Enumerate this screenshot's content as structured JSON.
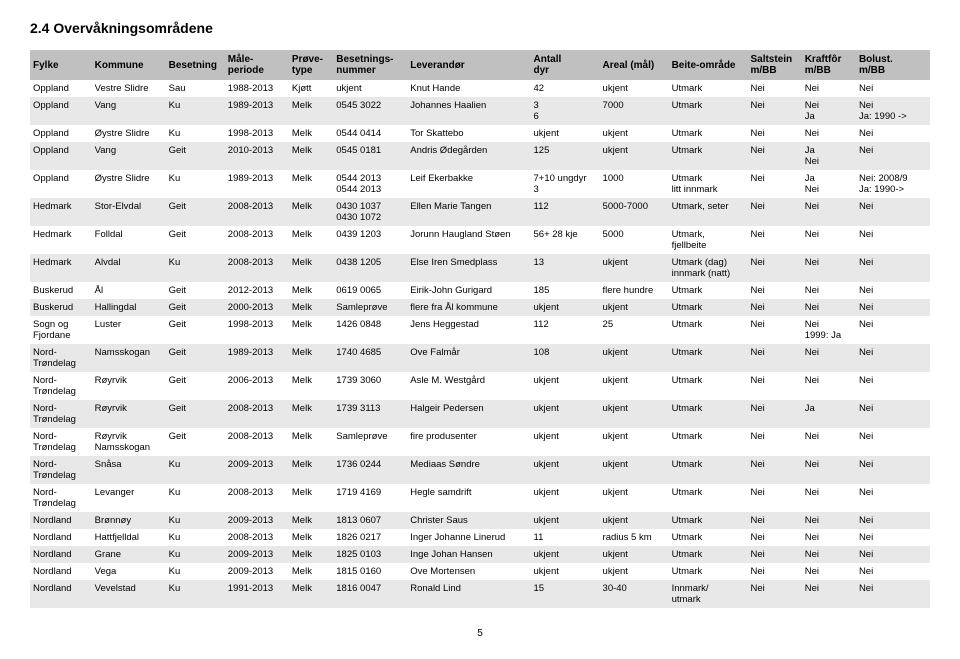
{
  "title": "2.4  Overvåkningsområdene",
  "pageNumber": "5",
  "columns": [
    "Fylke",
    "Kommune",
    "Besetning",
    "Måle-\nperiode",
    "Prøve-\ntype",
    "Besetnings-\nnummer",
    "Leverandør",
    "Antall\ndyr",
    "Areal (mål)",
    "Beite-område",
    "Saltstein\nm/BB",
    "Kraftfôr\nm/BB",
    "Bolust.\nm/BB"
  ],
  "rows": [
    [
      "Oppland",
      "Vestre Slidre",
      "Sau",
      "1988-2013",
      "Kjøtt",
      "ukjent",
      "Knut Hande",
      "42",
      "ukjent",
      "Utmark",
      "Nei",
      "Nei",
      "Nei"
    ],
    [
      "Oppland",
      "Vang",
      "Ku",
      "1989-2013",
      "Melk",
      "0545 3022",
      "Johannes Haalien",
      "3\n6",
      "7000",
      "Utmark",
      "Nei",
      "Nei\nJa",
      "Nei\nJa: 1990 ->"
    ],
    [
      "Oppland",
      "Øystre Slidre",
      "Ku",
      "1998-2013",
      "Melk",
      "0544 0414",
      "Tor Skattebo",
      "ukjent",
      "ukjent",
      "Utmark",
      "Nei",
      "Nei",
      "Nei"
    ],
    [
      "Oppland",
      "Vang",
      "Geit",
      "2010-2013",
      "Melk",
      "0545 0181",
      "Andris Ødegården",
      "125",
      "ukjent",
      "Utmark",
      "Nei",
      "Ja\nNei",
      "Nei"
    ],
    [
      "Oppland",
      "Øystre Slidre",
      "Ku",
      "1989-2013",
      "Melk",
      "0544 2013\n0544 2013",
      "Leif Ekerbakke",
      "7+10 ungdyr\n3",
      "1000",
      "Utmark\nlitt innmark",
      "Nei",
      "Ja\nNei",
      "Nei: 2008/9\nJa: 1990->"
    ],
    [
      "Hedmark",
      "Stor-Elvdal",
      "Geit",
      "2008-2013",
      "Melk",
      "0430 1037\n0430 1072",
      "Ellen Marie Tangen",
      "112",
      "5000-7000",
      "Utmark, seter",
      "Nei",
      "Nei",
      "Nei"
    ],
    [
      "Hedmark",
      "Folldal",
      "Geit",
      "2008-2013",
      "Melk",
      "0439 1203",
      "Jorunn Haugland Støen",
      "56+ 28 kje",
      "5000",
      "Utmark,\nfjellbeite",
      "Nei",
      "Nei",
      "Nei"
    ],
    [
      "Hedmark",
      "Alvdal",
      "Ku",
      "2008-2013",
      "Melk",
      "0438 1205",
      "Else Iren Smedplass",
      "13",
      "ukjent",
      "Utmark (dag)\ninnmark (natt)",
      "Nei",
      "Nei",
      "Nei"
    ],
    [
      "Buskerud",
      "Ål",
      "Geit",
      "2012-2013",
      "Melk",
      "0619 0065",
      "Eirik-John Gurigard",
      "185",
      "flere hundre",
      "Utmark",
      "Nei",
      "Nei",
      "Nei"
    ],
    [
      "Buskerud",
      "Hallingdal",
      "Geit",
      "2000-2013",
      "Melk",
      "Samleprøve",
      "flere fra Ål kommune",
      "ukjent",
      "ukjent",
      "Utmark",
      "Nei",
      "Nei",
      "Nei"
    ],
    [
      "Sogn og\nFjordane",
      "Luster",
      "Geit",
      "1998-2013",
      "Melk",
      "1426 0848",
      "Jens Heggestad",
      "112",
      "25",
      "Utmark",
      "Nei",
      "Nei\n1999: Ja",
      "Nei"
    ],
    [
      "Nord-\nTrøndelag",
      "Namsskogan",
      "Geit",
      "1989-2013",
      "Melk",
      "1740 4685",
      "Ove Falmår",
      "108",
      "ukjent",
      "Utmark",
      "Nei",
      "Nei",
      "Nei"
    ],
    [
      "Nord-\nTrøndelag",
      "Røyrvik",
      "Geit",
      "2006-2013",
      "Melk",
      "1739 3060",
      "Asle M. Westgård",
      "ukjent",
      "ukjent",
      "Utmark",
      "Nei",
      "Nei",
      "Nei"
    ],
    [
      "Nord-\nTrøndelag",
      "Røyrvik",
      "Geit",
      "2008-2013",
      "Melk",
      "1739 3113",
      "Halgeir Pedersen",
      "ukjent",
      "ukjent",
      "Utmark",
      "Nei",
      "Ja",
      "Nei"
    ],
    [
      "Nord-\nTrøndelag",
      "Røyrvik\nNamsskogan",
      "Geit",
      "2008-2013",
      "Melk",
      "Samleprøve",
      "fire produsenter",
      "ukjent",
      "ukjent",
      "Utmark",
      "Nei",
      "Nei",
      "Nei"
    ],
    [
      "Nord-\nTrøndelag",
      "Snåsa",
      "Ku",
      "2009-2013",
      "Melk",
      "1736 0244",
      "Mediaas Søndre",
      "ukjent",
      "ukjent",
      "Utmark",
      "Nei",
      "Nei",
      "Nei"
    ],
    [
      "Nord-\nTrøndelag",
      "Levanger",
      "Ku",
      "2008-2013",
      "Melk",
      "1719 4169",
      "Hegle samdrift",
      "ukjent",
      "ukjent",
      "Utmark",
      "Nei",
      "Nei",
      "Nei"
    ],
    [
      "Nordland",
      "Brønnøy",
      "Ku",
      "2009-2013",
      "Melk",
      "1813 0607",
      "Christer Saus",
      "ukjent",
      "ukjent",
      "Utmark",
      "Nei",
      "Nei",
      "Nei"
    ],
    [
      "Nordland",
      "Hattfjelldal",
      "Ku",
      "2008-2013",
      "Melk",
      "1826 0217",
      "Inger Johanne Linerud",
      "11",
      "radius 5 km",
      "Utmark",
      "Nei",
      "Nei",
      "Nei"
    ],
    [
      "Nordland",
      "Grane",
      "Ku",
      "2009-2013",
      "Melk",
      "1825 0103",
      "Inge Johan Hansen",
      "ukjent",
      "ukjent",
      "Utmark",
      "Nei",
      "Nei",
      "Nei"
    ],
    [
      "Nordland",
      "Vega",
      "Ku",
      "2009-2013",
      "Melk",
      "1815 0160",
      "Ove Mortensen",
      "ukjent",
      "ukjent",
      "Utmark",
      "Nei",
      "Nei",
      "Nei"
    ],
    [
      "Nordland",
      "Vevelstad",
      "Ku",
      "1991-2013",
      "Melk",
      "1816 0047",
      "Ronald Lind",
      "15",
      "30-40",
      "Innmark/\nutmark",
      "Nei",
      "Nei",
      "Nei"
    ]
  ],
  "style": {
    "header_bg": "#c0c0c0",
    "row_alt_bg": "#e8e8e8",
    "font_body": 10,
    "font_title": 14
  }
}
